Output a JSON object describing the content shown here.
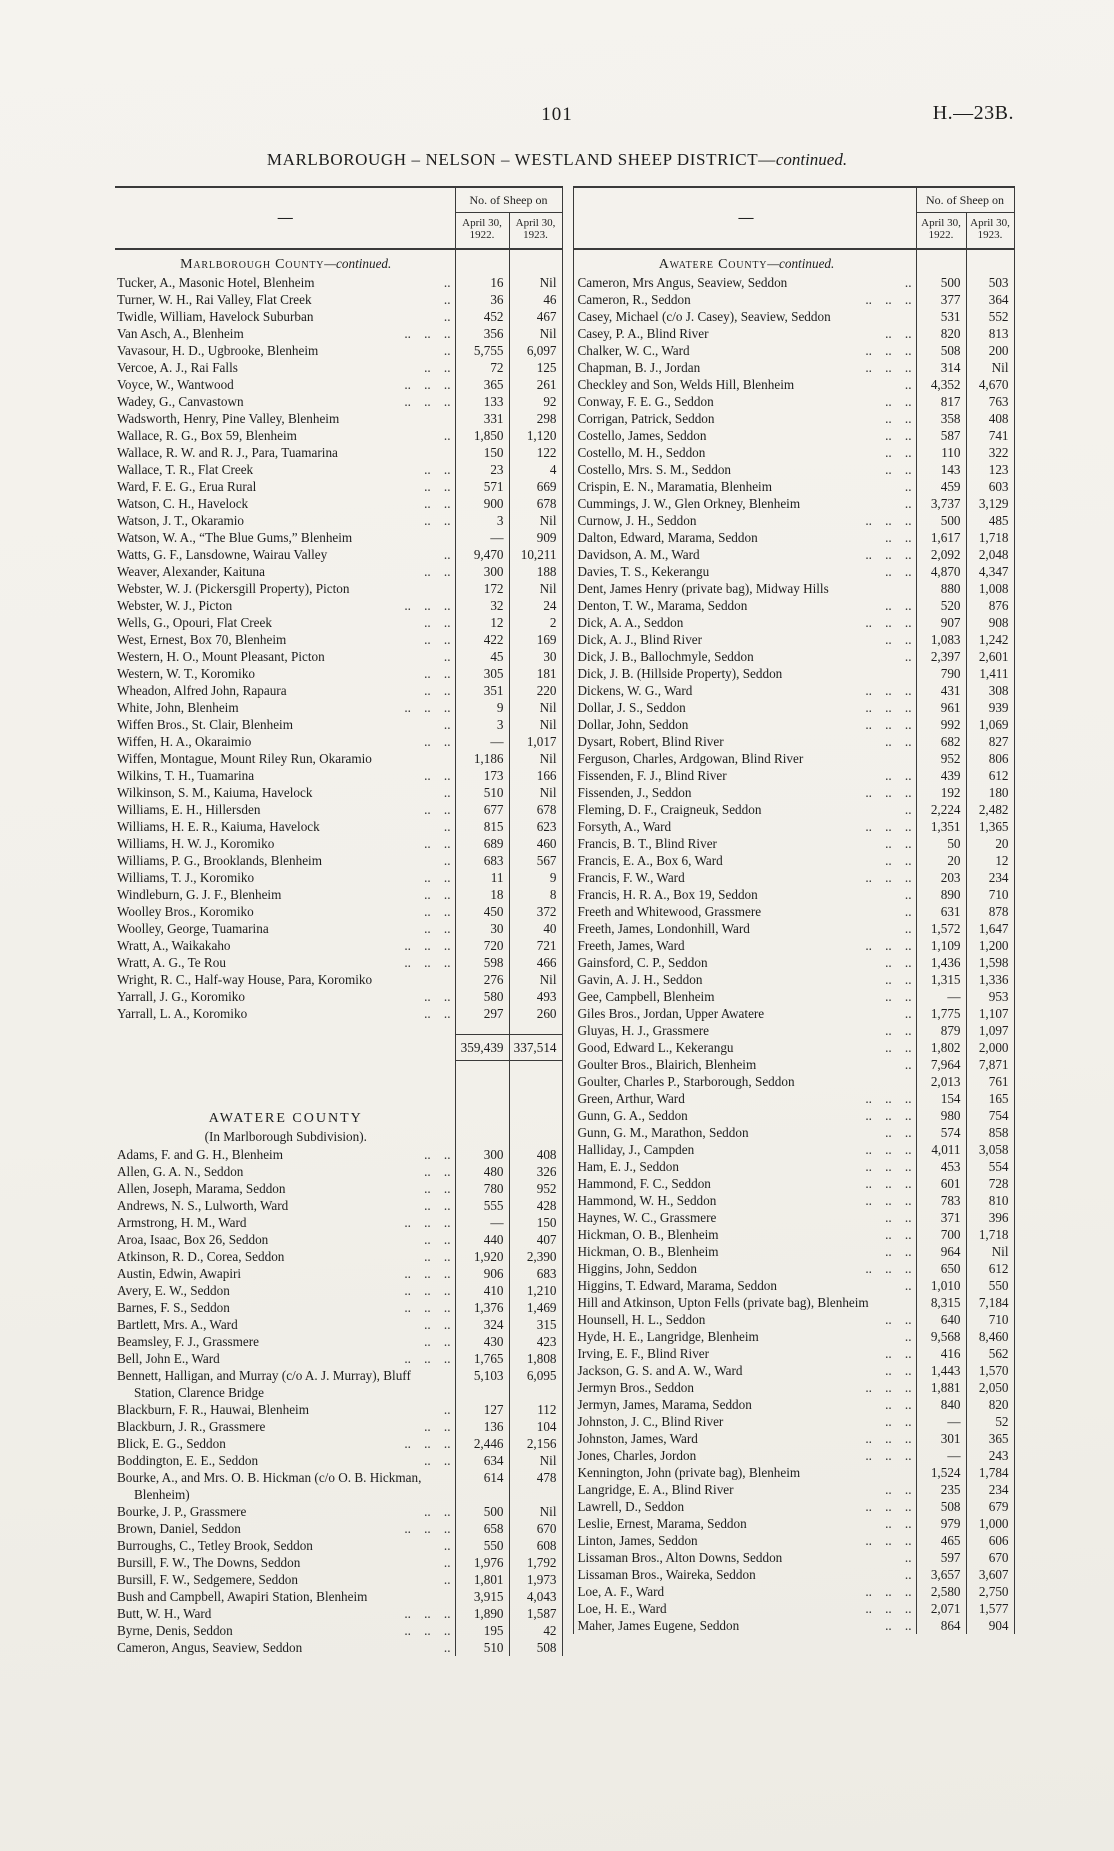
{
  "page": {
    "number": "101",
    "doc_ref": "H.—23B.",
    "title_main": "MARLBOROUGH – NELSON – WESTLAND SHEEP DISTRICT—",
    "title_it": "continued."
  },
  "hdr": {
    "dash": "—",
    "sheep_on": "No. of Sheep on",
    "y1922": "April 30, 1922.",
    "y1923": "April 30, 1923."
  },
  "left": {
    "sec1": {
      "heading_sc": "Marlborough County",
      "heading_it": "—continued.",
      "rows": [
        {
          "n": "Tucker, A., Masonic Hotel, Blenheim",
          "a": "16",
          "b": "Nil"
        },
        {
          "n": "Turner, W. H., Rai Valley, Flat Creek",
          "a": "36",
          "b": "46"
        },
        {
          "n": "Twidle, William, Havelock Suburban",
          "a": "452",
          "b": "467"
        },
        {
          "n": "Van Asch, A., Blenheim",
          "a": "356",
          "b": "Nil"
        },
        {
          "n": "Vavasour, H. D., Ugbrooke, Blenheim",
          "a": "5,755",
          "b": "6,097"
        },
        {
          "n": "Vercoe, A. J., Rai Falls",
          "a": "72",
          "b": "125"
        },
        {
          "n": "Voyce, W., Wantwood",
          "a": "365",
          "b": "261"
        },
        {
          "n": "Wadey, G., Canvastown",
          "a": "133",
          "b": "92"
        },
        {
          "n": "Wadsworth, Henry, Pine Valley, Blenheim",
          "a": "331",
          "b": "298"
        },
        {
          "n": "Wallace, R. G., Box 59, Blenheim",
          "a": "1,850",
          "b": "1,120"
        },
        {
          "n": "Wallace, R. W. and R. J., Para, Tuamarina",
          "a": "150",
          "b": "122"
        },
        {
          "n": "Wallace, T. R., Flat Creek",
          "a": "23",
          "b": "4"
        },
        {
          "n": "Ward, F. E. G., Erua Rural",
          "a": "571",
          "b": "669"
        },
        {
          "n": "Watson, C. H., Havelock",
          "a": "900",
          "b": "678"
        },
        {
          "n": "Watson, J. T., Okaramio",
          "a": "3",
          "b": "Nil"
        },
        {
          "n": "Watson, W. A., “The Blue Gums,” Blenheim",
          "a": "—",
          "b": "909"
        },
        {
          "n": "Watts, G. F., Lansdowne, Wairau Valley",
          "a": "9,470",
          "b": "10,211"
        },
        {
          "n": "Weaver, Alexander, Kaituna",
          "a": "300",
          "b": "188"
        },
        {
          "n": "Webster, W. J. (Pickersgill Property), Picton",
          "a": "172",
          "b": "Nil"
        },
        {
          "n": "Webster, W. J., Picton",
          "a": "32",
          "b": "24"
        },
        {
          "n": "Wells, G., Opouri, Flat Creek",
          "a": "12",
          "b": "2"
        },
        {
          "n": "West, Ernest, Box 70, Blenheim",
          "a": "422",
          "b": "169"
        },
        {
          "n": "Western, H. O., Mount Pleasant, Picton",
          "a": "45",
          "b": "30"
        },
        {
          "n": "Western, W. T., Koromiko",
          "a": "305",
          "b": "181"
        },
        {
          "n": "Wheadon, Alfred John, Rapaura",
          "a": "351",
          "b": "220"
        },
        {
          "n": "White, John, Blenheim",
          "a": "9",
          "b": "Nil"
        },
        {
          "n": "Wiffen Bros., St. Clair, Blenheim",
          "a": "3",
          "b": "Nil"
        },
        {
          "n": "Wiffen, H. A., Okaraimio",
          "a": "—",
          "b": "1,017"
        },
        {
          "n": "Wiffen, Montague, Mount Riley Run, Okaramio",
          "a": "1,186",
          "b": "Nil"
        },
        {
          "n": "Wilkins, T. H., Tuamarina",
          "a": "173",
          "b": "166"
        },
        {
          "n": "Wilkinson, S. M., Kaiuma, Havelock",
          "a": "510",
          "b": "Nil"
        },
        {
          "n": "Williams, E. H., Hillersden",
          "a": "677",
          "b": "678"
        },
        {
          "n": "Williams, H. E. R., Kaiuma, Havelock",
          "a": "815",
          "b": "623"
        },
        {
          "n": "Williams, H. W. J., Koromiko",
          "a": "689",
          "b": "460"
        },
        {
          "n": "Williams, P. G., Brooklands, Blenheim",
          "a": "683",
          "b": "567"
        },
        {
          "n": "Williams, T. J., Koromiko",
          "a": "11",
          "b": "9"
        },
        {
          "n": "Windleburn, G. J. F., Blenheim",
          "a": "18",
          "b": "8"
        },
        {
          "n": "Woolley Bros., Koromiko",
          "a": "450",
          "b": "372"
        },
        {
          "n": "Woolley, George, Tuamarina",
          "a": "30",
          "b": "40"
        },
        {
          "n": "Wratt, A., Waikakaho",
          "a": "720",
          "b": "721"
        },
        {
          "n": "Wratt, A. G., Te Rou",
          "a": "598",
          "b": "466"
        },
        {
          "n": "Wright, R. C., Half-way House, Para, Koromiko",
          "a": "276",
          "b": "Nil"
        },
        {
          "n": "Yarrall, J. G., Koromiko",
          "a": "580",
          "b": "493"
        },
        {
          "n": "Yarrall, L. A., Koromiko",
          "a": "297",
          "b": "260"
        }
      ]
    },
    "total": {
      "a": "359,439",
      "b": "337,514"
    },
    "sec2": {
      "heading": "AWATERE COUNTY",
      "subheading": "(In Marlborough Subdivision).",
      "rows": [
        {
          "n": "Adams, F. and G. H., Blenheim",
          "a": "300",
          "b": "408"
        },
        {
          "n": "Allen, G. A. N., Seddon",
          "a": "480",
          "b": "326"
        },
        {
          "n": "Allen, Joseph, Marama, Seddon",
          "a": "780",
          "b": "952"
        },
        {
          "n": "Andrews, N. S., Lulworth, Ward",
          "a": "555",
          "b": "428"
        },
        {
          "n": "Armstrong, H. M., Ward",
          "a": "—",
          "b": "150"
        },
        {
          "n": "Aroa, Isaac, Box 26, Seddon",
          "a": "440",
          "b": "407"
        },
        {
          "n": "Atkinson, R. D., Corea, Seddon",
          "a": "1,920",
          "b": "2,390"
        },
        {
          "n": "Austin, Edwin, Awapiri",
          "a": "906",
          "b": "683"
        },
        {
          "n": "Avery, E. W., Seddon",
          "a": "410",
          "b": "1,210"
        },
        {
          "n": "Barnes, F. S., Seddon",
          "a": "1,376",
          "b": "1,469"
        },
        {
          "n": "Bartlett, Mrs. A., Ward",
          "a": "324",
          "b": "315"
        },
        {
          "n": "Beamsley, F. J., Grassmere",
          "a": "430",
          "b": "423"
        },
        {
          "n": "Bell, John E., Ward",
          "a": "1,765",
          "b": "1,808"
        },
        {
          "n": "Bennett, Halligan, and Murray (c/o A. J. Murray), Bluff Station, Clarence Bridge",
          "a": "5,103",
          "b": "6,095"
        },
        {
          "n": "Blackburn, F. R., Hauwai, Blenheim",
          "a": "127",
          "b": "112"
        },
        {
          "n": "Blackburn, J. R., Grassmere",
          "a": "136",
          "b": "104"
        },
        {
          "n": "Blick, E. G., Seddon",
          "a": "2,446",
          "b": "2,156"
        },
        {
          "n": "Boddington, E. E., Seddon",
          "a": "634",
          "b": "Nil"
        },
        {
          "n": "Bourke, A., and Mrs. O. B. Hickman (c/o O. B. Hickman, Blenheim)",
          "a": "614",
          "b": "478"
        },
        {
          "n": "Bourke, J. P., Grassmere",
          "a": "500",
          "b": "Nil"
        },
        {
          "n": "Brown, Daniel, Seddon",
          "a": "658",
          "b": "670"
        },
        {
          "n": "Burroughs, C., Tetley Brook, Seddon",
          "a": "550",
          "b": "608"
        },
        {
          "n": "Bursill, F. W., The Downs, Seddon",
          "a": "1,976",
          "b": "1,792"
        },
        {
          "n": "Bursill, F. W., Sedgemere, Seddon",
          "a": "1,801",
          "b": "1,973"
        },
        {
          "n": "Bush and Campbell, Awapiri Station, Blenheim",
          "a": "3,915",
          "b": "4,043"
        },
        {
          "n": "Butt, W. H., Ward",
          "a": "1,890",
          "b": "1,587"
        },
        {
          "n": "Byrne, Denis, Seddon",
          "a": "195",
          "b": "42"
        },
        {
          "n": "Cameron, Angus, Seaview, Seddon",
          "a": "510",
          "b": "508"
        }
      ]
    }
  },
  "right": {
    "sec": {
      "heading_sc": "Awatere County",
      "heading_it": "—continued.",
      "rows": [
        {
          "n": "Cameron, Mrs Angus, Seaview, Seddon",
          "a": "500",
          "b": "503"
        },
        {
          "n": "Cameron, R., Seddon",
          "a": "377",
          "b": "364"
        },
        {
          "n": "Casey, Michael (c/o J. Casey), Seaview, Seddon",
          "a": "531",
          "b": "552"
        },
        {
          "n": "Casey, P. A., Blind River",
          "a": "820",
          "b": "813"
        },
        {
          "n": "Chalker, W. C., Ward",
          "a": "508",
          "b": "200"
        },
        {
          "n": "Chapman, B. J., Jordan",
          "a": "314",
          "b": "Nil"
        },
        {
          "n": "Checkley and Son, Welds Hill, Blenheim",
          "a": "4,352",
          "b": "4,670"
        },
        {
          "n": "Conway, F. E. G., Seddon",
          "a": "817",
          "b": "763"
        },
        {
          "n": "Corrigan, Patrick, Seddon",
          "a": "358",
          "b": "408"
        },
        {
          "n": "Costello, James, Seddon",
          "a": "587",
          "b": "741"
        },
        {
          "n": "Costello, M. H., Seddon",
          "a": "110",
          "b": "322"
        },
        {
          "n": "Costello, Mrs. S. M., Seddon",
          "a": "143",
          "b": "123"
        },
        {
          "n": "Crispin, E. N., Maramatia, Blenheim",
          "a": "459",
          "b": "603"
        },
        {
          "n": "Cummings, J. W., Glen Orkney, Blenheim",
          "a": "3,737",
          "b": "3,129"
        },
        {
          "n": "Curnow, J. H., Seddon",
          "a": "500",
          "b": "485"
        },
        {
          "n": "Dalton, Edward, Marama, Seddon",
          "a": "1,617",
          "b": "1,718"
        },
        {
          "n": "Davidson, A. M., Ward",
          "a": "2,092",
          "b": "2,048"
        },
        {
          "n": "Davies, T. S., Kekerangu",
          "a": "4,870",
          "b": "4,347"
        },
        {
          "n": "Dent, James Henry (private bag), Midway Hills",
          "a": "880",
          "b": "1,008"
        },
        {
          "n": "Denton, T. W., Marama, Seddon",
          "a": "520",
          "b": "876"
        },
        {
          "n": "Dick, A. A., Seddon",
          "a": "907",
          "b": "908"
        },
        {
          "n": "Dick, A. J., Blind River",
          "a": "1,083",
          "b": "1,242"
        },
        {
          "n": "Dick, J. B., Ballochmyle, Seddon",
          "a": "2,397",
          "b": "2,601"
        },
        {
          "n": "Dick, J. B. (Hillside Property), Seddon",
          "a": "790",
          "b": "1,411"
        },
        {
          "n": "Dickens, W. G., Ward",
          "a": "431",
          "b": "308"
        },
        {
          "n": "Dollar, J. S., Seddon",
          "a": "961",
          "b": "939"
        },
        {
          "n": "Dollar, John, Seddon",
          "a": "992",
          "b": "1,069"
        },
        {
          "n": "Dysart, Robert, Blind River",
          "a": "682",
          "b": "827"
        },
        {
          "n": "Ferguson, Charles, Ardgowan, Blind River",
          "a": "952",
          "b": "806"
        },
        {
          "n": "Fissenden, F. J., Blind River",
          "a": "439",
          "b": "612"
        },
        {
          "n": "Fissenden, J., Seddon",
          "a": "192",
          "b": "180"
        },
        {
          "n": "Fleming, D. F., Craigneuk, Seddon",
          "a": "2,224",
          "b": "2,482"
        },
        {
          "n": "Forsyth, A., Ward",
          "a": "1,351",
          "b": "1,365"
        },
        {
          "n": "Francis, B. T., Blind River",
          "a": "50",
          "b": "20"
        },
        {
          "n": "Francis, E. A., Box 6, Ward",
          "a": "20",
          "b": "12"
        },
        {
          "n": "Francis, F. W., Ward",
          "a": "203",
          "b": "234"
        },
        {
          "n": "Francis, H. R. A., Box 19, Seddon",
          "a": "890",
          "b": "710"
        },
        {
          "n": "Freeth and Whitewood, Grassmere",
          "a": "631",
          "b": "878"
        },
        {
          "n": "Freeth, James, Londonhill, Ward",
          "a": "1,572",
          "b": "1,647"
        },
        {
          "n": "Freeth, James, Ward",
          "a": "1,109",
          "b": "1,200"
        },
        {
          "n": "Gainsford, C. P., Seddon",
          "a": "1,436",
          "b": "1,598"
        },
        {
          "n": "Gavin, A. J. H., Seddon",
          "a": "1,315",
          "b": "1,336"
        },
        {
          "n": "Gee, Campbell, Blenheim",
          "a": "—",
          "b": "953"
        },
        {
          "n": "Giles Bros., Jordan, Upper Awatere",
          "a": "1,775",
          "b": "1,107"
        },
        {
          "n": "Gluyas, H. J., Grassmere",
          "a": "879",
          "b": "1,097"
        },
        {
          "n": "Good, Edward L., Kekerangu",
          "a": "1,802",
          "b": "2,000"
        },
        {
          "n": "Goulter Bros., Blairich, Blenheim",
          "a": "7,964",
          "b": "7,871"
        },
        {
          "n": "Goulter, Charles P., Starborough, Seddon",
          "a": "2,013",
          "b": "761"
        },
        {
          "n": "Green, Arthur, Ward",
          "a": "154",
          "b": "165"
        },
        {
          "n": "Gunn, G. A., Seddon",
          "a": "980",
          "b": "754"
        },
        {
          "n": "Gunn, G. M., Marathon, Seddon",
          "a": "574",
          "b": "858"
        },
        {
          "n": "Halliday, J., Campden",
          "a": "4,011",
          "b": "3,058"
        },
        {
          "n": "Ham, E. J., Seddon",
          "a": "453",
          "b": "554"
        },
        {
          "n": "Hammond, F. C., Seddon",
          "a": "601",
          "b": "728"
        },
        {
          "n": "Hammond, W. H., Seddon",
          "a": "783",
          "b": "810"
        },
        {
          "n": "Haynes, W. C., Grassmere",
          "a": "371",
          "b": "396"
        },
        {
          "n": "Hickman, O. B., Blenheim",
          "a": "700",
          "b": "1,718"
        },
        {
          "n": "Hickman, O. B., Blenheim",
          "a": "964",
          "b": "Nil"
        },
        {
          "n": "Higgins, John, Seddon",
          "a": "650",
          "b": "612"
        },
        {
          "n": "Higgins, T. Edward, Marama, Seddon",
          "a": "1,010",
          "b": "550"
        },
        {
          "n": "Hill and Atkinson, Upton Fells (private bag), Blenheim",
          "a": "8,315",
          "b": "7,184"
        },
        {
          "n": "Hounsell, H. L., Seddon",
          "a": "640",
          "b": "710"
        },
        {
          "n": "Hyde, H. E., Langridge, Blenheim",
          "a": "9,568",
          "b": "8,460"
        },
        {
          "n": "Irving, E. F., Blind River",
          "a": "416",
          "b": "562"
        },
        {
          "n": "Jackson, G. S. and A. W., Ward",
          "a": "1,443",
          "b": "1,570"
        },
        {
          "n": "Jermyn Bros., Seddon",
          "a": "1,881",
          "b": "2,050"
        },
        {
          "n": "Jermyn, James, Marama, Seddon",
          "a": "840",
          "b": "820"
        },
        {
          "n": "Johnston, J. C., Blind River",
          "a": "—",
          "b": "52"
        },
        {
          "n": "Johnston, James, Ward",
          "a": "301",
          "b": "365"
        },
        {
          "n": "Jones, Charles, Jordon",
          "a": "—",
          "b": "243"
        },
        {
          "n": "Kennington, John (private bag), Blenheim",
          "a": "1,524",
          "b": "1,784"
        },
        {
          "n": "Langridge, E. A., Blind River",
          "a": "235",
          "b": "234"
        },
        {
          "n": "Lawrell, D., Seddon",
          "a": "508",
          "b": "679"
        },
        {
          "n": "Leslie, Ernest, Marama, Seddon",
          "a": "979",
          "b": "1,000"
        },
        {
          "n": "Linton, James, Seddon",
          "a": "465",
          "b": "606"
        },
        {
          "n": "Lissaman Bros., Alton Downs, Seddon",
          "a": "597",
          "b": "670"
        },
        {
          "n": "Lissaman Bros., Waireka, Seddon",
          "a": "3,657",
          "b": "3,607"
        },
        {
          "n": "Loe, A. F., Ward",
          "a": "2,580",
          "b": "2,750"
        },
        {
          "n": "Loe, H. E., Ward",
          "a": "2,071",
          "b": "1,577"
        },
        {
          "n": "Maher, James Eugene, Seddon",
          "a": "864",
          "b": "904"
        }
      ]
    }
  }
}
